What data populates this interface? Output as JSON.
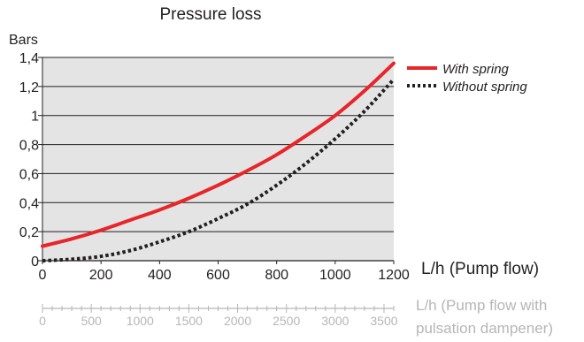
{
  "chart_data": {
    "type": "line",
    "title": "Pressure loss",
    "ylabel": "Bars",
    "xlabel": "L/h (Pump flow)",
    "x2label": "L/h (Pump flow with pulsation dampener)",
    "x2label_lines": [
      "L/h (Pump flow with",
      "pulsation dampener)"
    ],
    "xlim": [
      0,
      1200
    ],
    "ylim": [
      0,
      1.4
    ],
    "x_ticks": [
      "0",
      "200",
      "400",
      "600",
      "800",
      "1000",
      "1200"
    ],
    "y_ticks": [
      "0",
      "0,2",
      "0,4",
      "0,6",
      "0,8",
      "1",
      "1,2",
      "1,4"
    ],
    "x2_ticks": [
      "0",
      "500",
      "1000",
      "1500",
      "2000",
      "2500",
      "3000",
      "3500"
    ],
    "grid": true,
    "legend_position": "top-right",
    "series": [
      {
        "name": "With spring",
        "color": "#e8262a",
        "style": "solid",
        "x": [
          0,
          100,
          200,
          300,
          400,
          500,
          600,
          700,
          800,
          900,
          1000,
          1100,
          1200
        ],
        "y": [
          0.1,
          0.15,
          0.21,
          0.28,
          0.35,
          0.43,
          0.52,
          0.62,
          0.73,
          0.86,
          1.0,
          1.17,
          1.36
        ]
      },
      {
        "name": "Without spring",
        "color": "#231f20",
        "style": "dotted",
        "x": [
          0,
          100,
          200,
          300,
          400,
          500,
          600,
          700,
          800,
          900,
          1000,
          1100,
          1200
        ],
        "y": [
          0.0,
          0.01,
          0.03,
          0.07,
          0.13,
          0.2,
          0.29,
          0.39,
          0.52,
          0.67,
          0.84,
          1.03,
          1.25
        ]
      }
    ]
  }
}
